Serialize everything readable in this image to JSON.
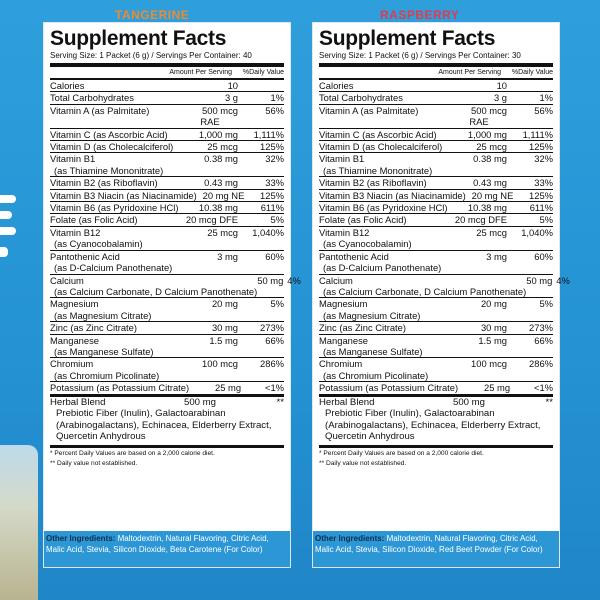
{
  "colors": {
    "background": "#2492d3",
    "left_flavor": "#f08a2c",
    "right_flavor": "#e23b4a"
  },
  "panels": [
    {
      "flavor": "TANGERINE",
      "title": "Supplement Facts",
      "serving": "Serving Size: 1 Packet (6 g) / Servings Per Container: 40",
      "col_amount": "Amount Per Serving",
      "col_dv": "%Daily Value",
      "rows": [
        {
          "name": "Calories",
          "amount": "10",
          "dv": ""
        },
        {
          "name": "Total Carbohydrates",
          "amount": "3 g",
          "dv": "1%"
        },
        {
          "name": "Vitamin A (as Palmitate)",
          "amount": "500 mcg",
          "amount2": "RAE",
          "dv": "56%"
        },
        {
          "name": "Vitamin C (as Ascorbic Acid)",
          "amount": "1,000 mg",
          "dv": "1,111%"
        },
        {
          "name": "Vitamin D (as Cholecalciferol)",
          "amount": "25 mcg",
          "dv": "125%"
        },
        {
          "name": "Vitamin B1",
          "name2": "(as Thiamine Mononitrate)",
          "amount": "0.38 mg",
          "dv": "32%"
        },
        {
          "name": "Vitamin B2 (as Riboflavin)",
          "amount": "0.43 mg",
          "dv": "33%"
        },
        {
          "name": "Vitamin B3 Niacin (as Niacinamide)",
          "amount": "20 mg NE",
          "dv": "125%"
        },
        {
          "name": "Vitamin B6 (as Pyridoxine HCl)",
          "amount": "10.38 mg",
          "dv": "611%"
        },
        {
          "name": "Folate (as Folic Acid)",
          "amount": "20 mcg DFE",
          "dv": "5%"
        },
        {
          "name": "Vitamin B12",
          "name2": "(as Cyanocobalamin)",
          "amount": "25 mcg",
          "dv": "1,040%"
        },
        {
          "name": "Pantothenic Acid",
          "name2": "(as D-Calcium Panothenate)",
          "amount": "3 mg",
          "dv": "60%"
        },
        {
          "name": "Calcium",
          "name2": "(as Calcium Carbonate, D Calcium Panothenate)",
          "amount": "50 mg",
          "dv": "4%"
        },
        {
          "name": "Magnesium",
          "name2": "(as Magnesium Citrate)",
          "amount": "20 mg",
          "dv": "5%"
        },
        {
          "name": "Zinc (as Zinc Citrate)",
          "amount": "30 mg",
          "dv": "273%"
        },
        {
          "name": "Manganese",
          "name2": "(as Manganese Sulfate)",
          "amount": "1.5 mg",
          "dv": "66%"
        },
        {
          "name": "Chromium",
          "name2": "(as Chromium Picolinate)",
          "amount": "100 mcg",
          "dv": "286%"
        },
        {
          "name": "Potassium (as Potassium Citrate)",
          "amount": "25 mg",
          "dv": "<1%"
        }
      ],
      "herbal": {
        "name": "Herbal Blend",
        "amount": "500 mg",
        "dv": "**",
        "desc": "Prebiotic Fiber (Inulin), Galactoarabinan (Arabinogalactans), Echinacea, Elderberry Extract, Quercetin Anhydrous"
      },
      "foot1": "* Percent Daily Values are based on a 2,000 calorie diet.",
      "foot2": "** Daily value not established.",
      "other_label": "Other Ingredients:",
      "other_text": "Maltodextrin, Natural Flavoring, Citric Acid, Malic Acid, Stevia, Silicon Dioxide, Beta Carotene (For Color)"
    },
    {
      "flavor": "RASPBERRY",
      "title": "Supplement Facts",
      "serving": "Serving Size: 1 Packet (6 g) / Servings Per Container: 30",
      "col_amount": "Amount Per Serving",
      "col_dv": "%Daily Value",
      "rows": [
        {
          "name": "Calories",
          "amount": "10",
          "dv": ""
        },
        {
          "name": "Total Carbohydrates",
          "amount": "3 g",
          "dv": "1%"
        },
        {
          "name": "Vitamin A (as Palmitate)",
          "amount": "500 mcg",
          "amount2": "RAE",
          "dv": "56%"
        },
        {
          "name": "Vitamin C (as Ascorbic Acid)",
          "amount": "1,000 mg",
          "dv": "1,111%"
        },
        {
          "name": "Vitamin D (as Cholecalciferol)",
          "amount": "25 mcg",
          "dv": "125%"
        },
        {
          "name": "Vitamin B1",
          "name2": "(as Thiamine Mononitrate)",
          "amount": "0.38 mg",
          "dv": "32%"
        },
        {
          "name": "Vitamin B2 (as Riboflavin)",
          "amount": "0.43 mg",
          "dv": "33%"
        },
        {
          "name": "Vitamin B3 Niacin (as Niacinamide)",
          "amount": "20 mg NE",
          "dv": "125%"
        },
        {
          "name": "Vitamin B6 (as Pyridoxine HCl)",
          "amount": "10.38 mg",
          "dv": "611%"
        },
        {
          "name": "Folate (as Folic Acid)",
          "amount": "20 mcg DFE",
          "dv": "5%"
        },
        {
          "name": "Vitamin B12",
          "name2": "(as Cyanocobalamin)",
          "amount": "25 mcg",
          "dv": "1,040%"
        },
        {
          "name": "Pantothenic Acid",
          "name2": "(as D-Calcium Panothenate)",
          "amount": "3 mg",
          "dv": "60%"
        },
        {
          "name": "Calcium",
          "name2": "(as Calcium Carbonate, D Calcium Panothenate)",
          "amount": "50 mg",
          "dv": "4%"
        },
        {
          "name": "Magnesium",
          "name2": "(as Magnesium Citrate)",
          "amount": "20 mg",
          "dv": "5%"
        },
        {
          "name": "Zinc (as Zinc Citrate)",
          "amount": "30 mg",
          "dv": "273%"
        },
        {
          "name": "Manganese",
          "name2": "(as Manganese Sulfate)",
          "amount": "1.5 mg",
          "dv": "66%"
        },
        {
          "name": "Chromium",
          "name2": "(as Chromium Picolinate)",
          "amount": "100 mcg",
          "dv": "286%"
        },
        {
          "name": "Potassium (as Potassium Citrate)",
          "amount": "25 mg",
          "dv": "<1%"
        }
      ],
      "herbal": {
        "name": "Herbal Blend",
        "amount": "500 mg",
        "dv": "**",
        "desc": "Prebiotic Fiber (Inulin), Galactoarabinan (Arabinogalactans), Echinacea, Elderberry Extract, Quercetin Anhydrous"
      },
      "foot1": "* Percent Daily Values are based on a 2,000 calorie diet.",
      "foot2": "** Daily value not established.",
      "other_label": "Other Ingredients:",
      "other_text": "Maltodextrin, Natural Flavoring, Citric Acid, Malic Acid, Stevia, Silicon Dioxide, Red Beet Powder (For Color)"
    }
  ]
}
